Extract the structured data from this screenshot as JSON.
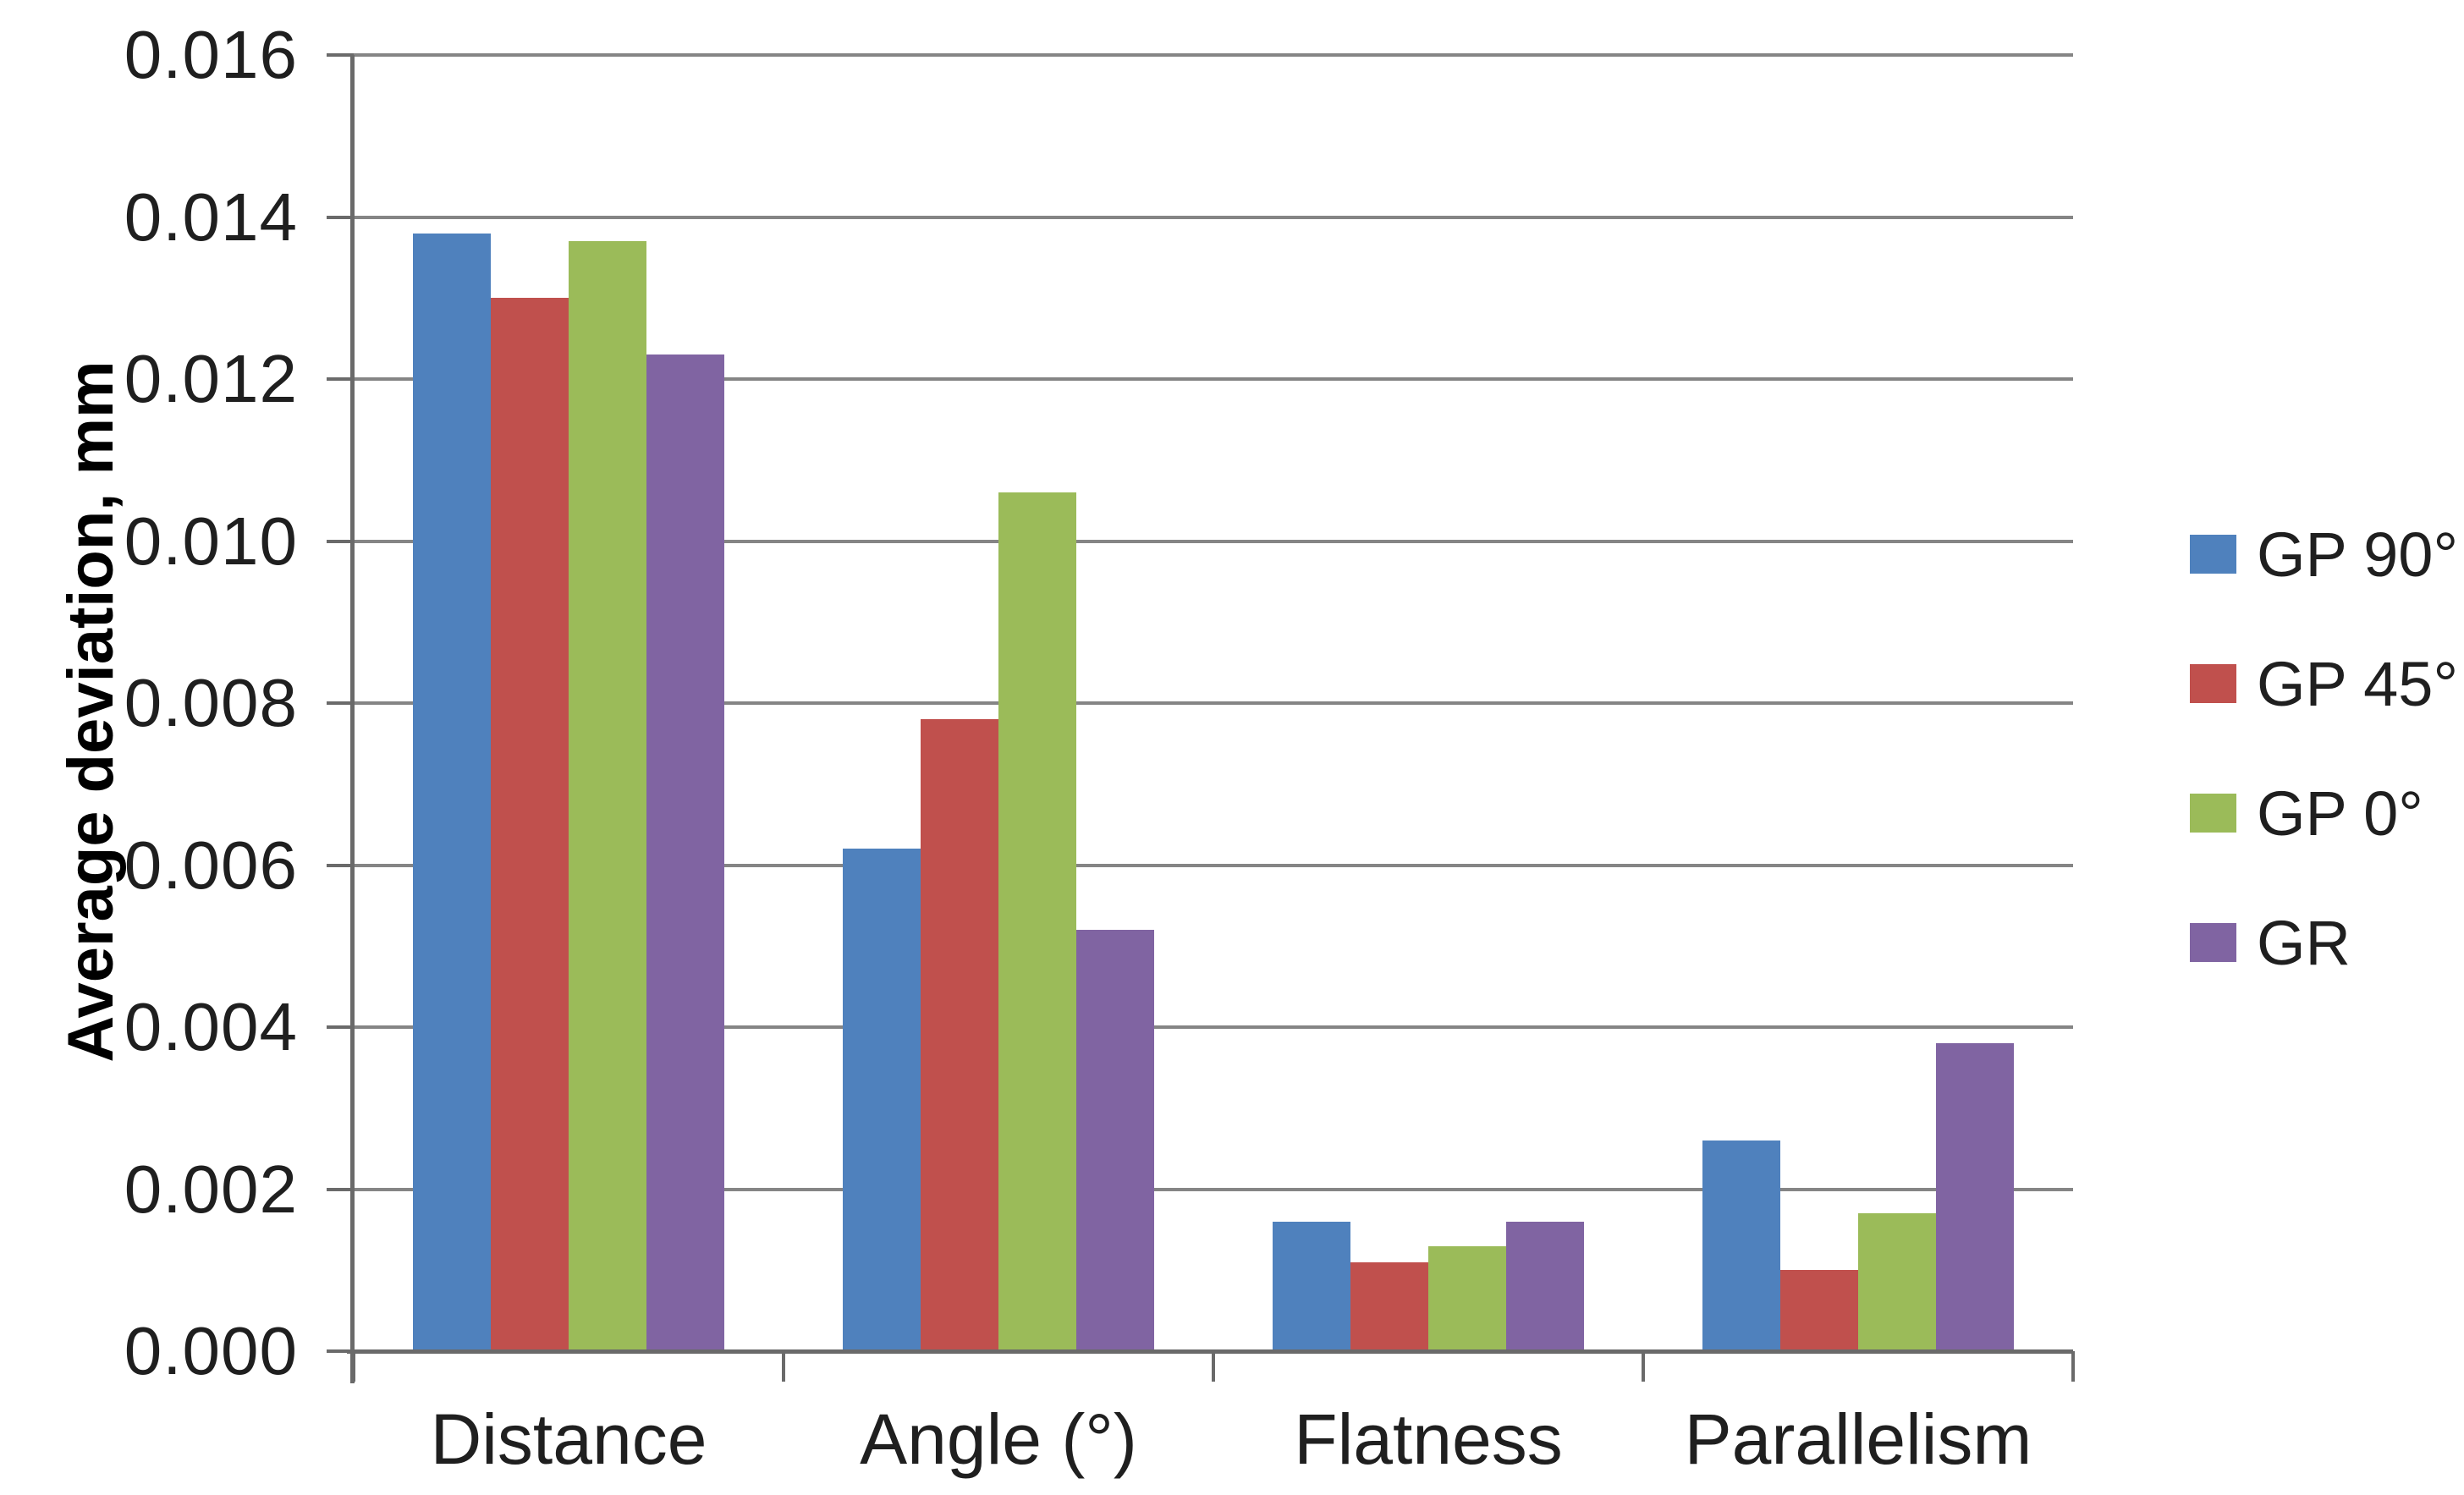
{
  "chart_data": {
    "type": "bar",
    "title": "",
    "ylabel": "Average deviation, mm",
    "xlabel": "",
    "categories": [
      "Distance",
      "Angle (°)",
      "Flatness",
      "Parallelism"
    ],
    "series": [
      {
        "name": "GP 90°",
        "color": "#4F81BD",
        "values": [
          0.0138,
          0.0062,
          0.0016,
          0.0026
        ]
      },
      {
        "name": "GP 45°",
        "color": "#C0504D",
        "values": [
          0.013,
          0.0078,
          0.0011,
          0.001
        ]
      },
      {
        "name": "GP 0°",
        "color": "#9BBB59",
        "values": [
          0.0137,
          0.0106,
          0.0013,
          0.0017
        ]
      },
      {
        "name": "GR",
        "color": "#8064A2",
        "values": [
          0.0123,
          0.0052,
          0.0016,
          0.0038
        ]
      }
    ],
    "ylim": [
      0,
      0.016
    ],
    "ytick_step": 0.002,
    "ytick_labels": [
      "0.000",
      "0.002",
      "0.004",
      "0.006",
      "0.008",
      "0.010",
      "0.012",
      "0.014",
      "0.016"
    ],
    "grid": "horizontal",
    "legend_position": "right",
    "colors": {
      "background": "#ffffff",
      "gridline": "#858585",
      "axis": "#6a6a6a",
      "text": "#1f1f1f"
    }
  }
}
